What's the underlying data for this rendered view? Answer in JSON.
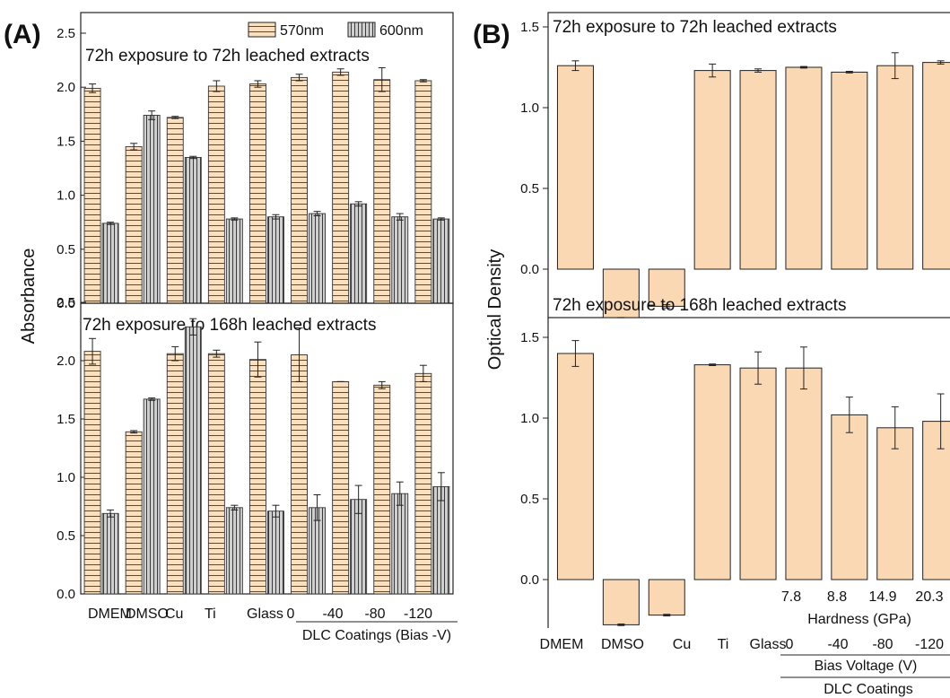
{
  "chart_data": [
    {
      "type": "bar",
      "label": "(A)",
      "ylabel": "Absorbance",
      "categories": [
        "DMEM",
        "DMSO",
        "Cu",
        "Ti",
        "Glass",
        "0",
        "-40",
        "-80",
        "-120"
      ],
      "group_label": "DLC Coatings (Bias -V)",
      "legend": [
        "570nm",
        "600nm"
      ],
      "legend_position": "top-right",
      "panels": [
        {
          "title": "72h exposure to 72h leached extracts",
          "ylim": [
            0,
            2.5
          ],
          "yticks": [
            "0.0",
            "0.5",
            "1.0",
            "1.5",
            "2.0",
            "2.5"
          ],
          "series": [
            {
              "name": "570nm",
              "values": [
                1.99,
                1.45,
                1.72,
                2.01,
                2.03,
                2.09,
                2.14,
                2.07,
                2.06
              ],
              "errors": [
                0.04,
                0.03,
                0.01,
                0.05,
                0.03,
                0.03,
                0.03,
                0.11,
                0.01
              ]
            },
            {
              "name": "600nm",
              "values": [
                0.74,
                1.74,
                1.35,
                0.78,
                0.8,
                0.83,
                0.92,
                0.8,
                0.78
              ],
              "errors": [
                0.01,
                0.04,
                0.01,
                0.01,
                0.02,
                0.02,
                0.02,
                0.03,
                0.01
              ]
            }
          ]
        },
        {
          "title": "72h exposure to 168h leached extracts",
          "ylim": [
            0,
            2.5
          ],
          "yticks": [
            "0.0",
            "0.5",
            "1.0",
            "1.5",
            "2.0",
            "2.5"
          ],
          "series": [
            {
              "name": "570nm",
              "values": [
                2.08,
                1.39,
                2.06,
                2.06,
                2.01,
                2.05,
                1.82,
                1.79,
                1.89
              ],
              "errors": [
                0.11,
                0.01,
                0.06,
                0.03,
                0.15,
                0.23,
                0.0,
                0.03,
                0.07
              ]
            },
            {
              "name": "600nm",
              "values": [
                0.69,
                1.67,
                2.29,
                0.74,
                0.71,
                0.74,
                0.81,
                0.86,
                0.92
              ],
              "errors": [
                0.03,
                0.01,
                0.07,
                0.02,
                0.05,
                0.11,
                0.12,
                0.1,
                0.12
              ]
            }
          ]
        }
      ]
    },
    {
      "type": "bar",
      "label": "(B)",
      "ylabel": "Optical Density",
      "categories": [
        "DMEM",
        "DMSO",
        "Cu",
        "Ti",
        "Glass",
        "0",
        "-40",
        "-80",
        "-120"
      ],
      "hardness_values": [
        "7.8",
        "8.8",
        "14.9",
        "20.3"
      ],
      "hardness_label": "Hardness (GPa)",
      "bias_label": "Bias Voltage (V)",
      "group_label": "DLC Coatings",
      "panels": [
        {
          "title": "72h exposure to 72h leached extracts",
          "ylim": [
            -0.3,
            1.6
          ],
          "yticks": [
            "0.0",
            "0.5",
            "1.0",
            "1.5"
          ],
          "series": [
            {
              "values": [
                1.26,
                -0.3,
                -0.23,
                1.23,
                1.23,
                1.25,
                1.22,
                1.26,
                1.28
              ],
              "errors": [
                0.03,
                0.0,
                0.01,
                0.04,
                0.01,
                0.005,
                0.005,
                0.08,
                0.01
              ]
            }
          ]
        },
        {
          "title": "72h exposure to 168h leached extracts",
          "ylim": [
            -0.3,
            1.6
          ],
          "yticks": [
            "0.0",
            "0.5",
            "1.0",
            "1.5"
          ],
          "series": [
            {
              "values": [
                1.4,
                -0.28,
                -0.22,
                1.33,
                1.31,
                1.31,
                1.02,
                0.94,
                0.98
              ],
              "errors": [
                0.08,
                0.005,
                0.005,
                0.005,
                0.1,
                0.13,
                0.11,
                0.13,
                0.17
              ]
            }
          ]
        }
      ]
    }
  ],
  "colors": {
    "bar_570": "#fbe0bf",
    "bar_600": "#c8c8c8",
    "bar_b": "#fbd8b4",
    "stroke": "#222222"
  }
}
